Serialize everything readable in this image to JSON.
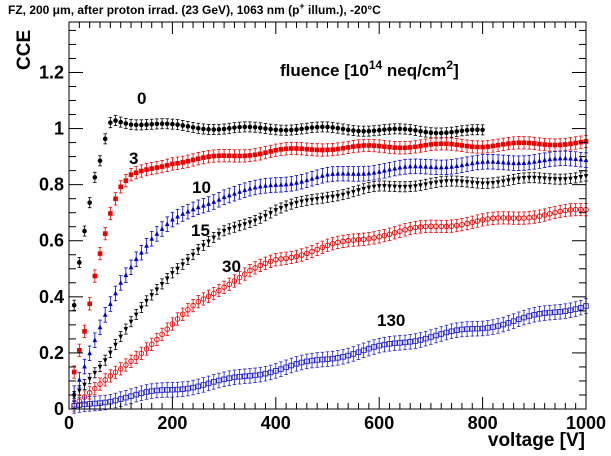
{
  "chart_data": {
    "type": "scatter",
    "title": "FZ, 200 μm, after proton irrad. (23 GeV), 1063 nm (p+ illum.), -20°C",
    "title_parts": {
      "prefix": "FZ, 200 μm, after proton irrad. (23 GeV), 1063 nm  (p",
      "sup": "+",
      "suffix": " illum.), -20°C"
    },
    "xlabel": "voltage [V]",
    "ylabel": "CCE",
    "xlim": [
      0,
      1000
    ],
    "ylim": [
      0,
      1.38
    ],
    "xticks": [
      0,
      200,
      400,
      600,
      800,
      1000
    ],
    "xtick_labels": [
      "0",
      "200",
      "400",
      "600",
      "800",
      "1000"
    ],
    "yticks": [
      0,
      0.2,
      0.4,
      0.6,
      0.8,
      1,
      1.2
    ],
    "ytick_labels": [
      "0",
      "0.2",
      "0.4",
      "0.6",
      "0.8",
      "1",
      "1.2"
    ],
    "legend_title": {
      "prefix": "fluence [10",
      "sup1": "14",
      "middle": " neq/cm",
      "sup2": "2",
      "suffix": "]"
    },
    "series": [
      {
        "annotation": "0",
        "color": "#000000",
        "marker": "circle-filled",
        "xmax": 800,
        "points": [
          [
            10,
            0.37
          ],
          [
            20,
            0.52
          ],
          [
            30,
            0.63
          ],
          [
            40,
            0.73
          ],
          [
            50,
            0.82
          ],
          [
            60,
            0.88
          ],
          [
            70,
            0.96
          ],
          [
            80,
            1.02
          ],
          [
            90,
            1.03
          ],
          [
            120,
            1.02
          ],
          [
            200,
            1.01
          ],
          [
            300,
            1.0
          ],
          [
            400,
            1.0
          ],
          [
            500,
            1.0
          ],
          [
            600,
            0.995
          ],
          [
            700,
            0.99
          ],
          [
            800,
            0.99
          ]
        ]
      },
      {
        "annotation": "3",
        "color": "#ee0000",
        "marker": "square-filled",
        "xmax": 1000,
        "points": [
          [
            10,
            0.13
          ],
          [
            20,
            0.21
          ],
          [
            30,
            0.28
          ],
          [
            40,
            0.38
          ],
          [
            50,
            0.48
          ],
          [
            60,
            0.56
          ],
          [
            70,
            0.63
          ],
          [
            80,
            0.7
          ],
          [
            90,
            0.75
          ],
          [
            100,
            0.79
          ],
          [
            110,
            0.81
          ],
          [
            120,
            0.83
          ],
          [
            150,
            0.85
          ],
          [
            200,
            0.88
          ],
          [
            300,
            0.9
          ],
          [
            400,
            0.92
          ],
          [
            500,
            0.93
          ],
          [
            600,
            0.935
          ],
          [
            700,
            0.94
          ],
          [
            800,
            0.94
          ],
          [
            900,
            0.945
          ],
          [
            1000,
            0.95
          ]
        ]
      },
      {
        "annotation": "10",
        "color": "#0000cc",
        "marker": "triangle-up-filled",
        "xmax": 1000,
        "points": [
          [
            10,
            0.06
          ],
          [
            30,
            0.15
          ],
          [
            50,
            0.24
          ],
          [
            70,
            0.33
          ],
          [
            100,
            0.45
          ],
          [
            130,
            0.54
          ],
          [
            160,
            0.61
          ],
          [
            200,
            0.67
          ],
          [
            250,
            0.72
          ],
          [
            300,
            0.76
          ],
          [
            400,
            0.8
          ],
          [
            500,
            0.83
          ],
          [
            600,
            0.85
          ],
          [
            700,
            0.865
          ],
          [
            800,
            0.875
          ],
          [
            900,
            0.885
          ],
          [
            1000,
            0.89
          ]
        ]
      },
      {
        "annotation": "15",
        "color": "#000000",
        "marker": "triangle-down-filled",
        "xmax": 1000,
        "points": [
          [
            10,
            0.04
          ],
          [
            40,
            0.11
          ],
          [
            70,
            0.18
          ],
          [
            100,
            0.26
          ],
          [
            150,
            0.38
          ],
          [
            200,
            0.49
          ],
          [
            250,
            0.57
          ],
          [
            300,
            0.63
          ],
          [
            400,
            0.71
          ],
          [
            500,
            0.76
          ],
          [
            600,
            0.79
          ],
          [
            700,
            0.805
          ],
          [
            800,
            0.81
          ],
          [
            900,
            0.82
          ],
          [
            1000,
            0.83
          ]
        ]
      },
      {
        "annotation": "30",
        "color": "#ee0000",
        "marker": "circle-open",
        "xmax": 1000,
        "points": [
          [
            10,
            0.02
          ],
          [
            50,
            0.07
          ],
          [
            100,
            0.14
          ],
          [
            150,
            0.22
          ],
          [
            200,
            0.3
          ],
          [
            250,
            0.38
          ],
          [
            300,
            0.44
          ],
          [
            350,
            0.49
          ],
          [
            400,
            0.53
          ],
          [
            500,
            0.58
          ],
          [
            600,
            0.62
          ],
          [
            700,
            0.65
          ],
          [
            800,
            0.67
          ],
          [
            900,
            0.69
          ],
          [
            1000,
            0.71
          ]
        ]
      },
      {
        "annotation": "130",
        "color": "#2222cc",
        "marker": "square-open",
        "xmax": 1000,
        "points": [
          [
            10,
            0.005
          ],
          [
            100,
            0.04
          ],
          [
            200,
            0.07
          ],
          [
            300,
            0.1
          ],
          [
            400,
            0.14
          ],
          [
            500,
            0.18
          ],
          [
            600,
            0.22
          ],
          [
            700,
            0.26
          ],
          [
            800,
            0.29
          ],
          [
            900,
            0.33
          ],
          [
            1000,
            0.37
          ]
        ]
      }
    ]
  }
}
